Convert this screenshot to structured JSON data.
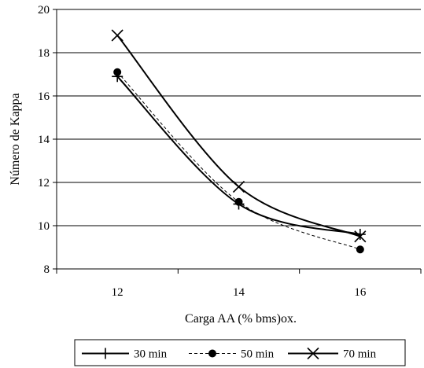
{
  "chart_data": {
    "type": "line",
    "xlabel": "Carga AA (% bms)ox.",
    "ylabel": "Número de Kappa",
    "x": [
      12,
      14,
      16
    ],
    "xlim": [
      11,
      17
    ],
    "ylim": [
      8,
      20
    ],
    "x_ticks": [
      "12",
      "14",
      "16"
    ],
    "y_ticks": [
      "8",
      "10",
      "12",
      "14",
      "16",
      "18",
      "20"
    ],
    "grid": "horizontal",
    "legend_position": "bottom",
    "series": [
      {
        "name": "30 min",
        "marker": "plus",
        "line_style": "solid",
        "values": [
          16.9,
          11.0,
          9.6
        ]
      },
      {
        "name": "50 min",
        "marker": "circle",
        "line_style": "dashed",
        "values": [
          17.1,
          11.1,
          8.9
        ]
      },
      {
        "name": "70 min",
        "marker": "x",
        "line_style": "solid",
        "values": [
          18.8,
          11.8,
          9.5
        ]
      }
    ]
  }
}
